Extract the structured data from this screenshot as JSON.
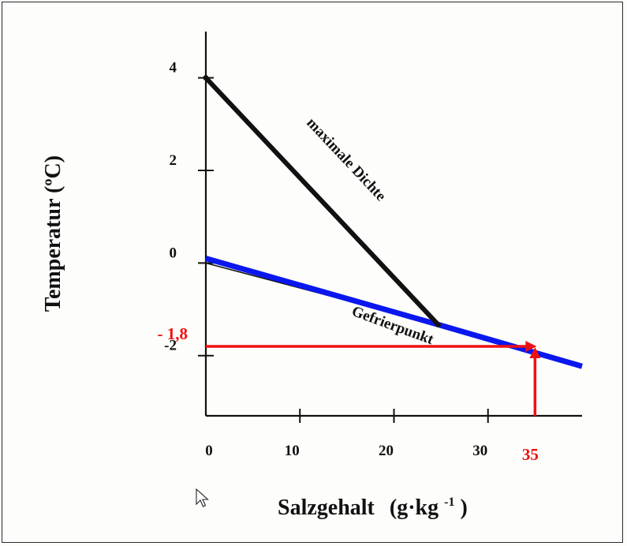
{
  "colors": {
    "max_density": "#111111",
    "freezing": "#0a17ee",
    "highlight": "#ee1111",
    "axis": "#111111"
  },
  "chart_data": {
    "type": "line",
    "xlabel": "Salzgehalt",
    "xlabel_unit_prefix": "(g·kg",
    "xlabel_unit_exp": "-1",
    "xlabel_unit_suffix": ")",
    "ylabel": "Temperatur  (ºC)",
    "xlim": [
      0,
      40
    ],
    "ylim": [
      -3.3,
      5
    ],
    "x_ticks": [
      0,
      10,
      20,
      30
    ],
    "y_ticks": [
      4,
      2,
      0,
      -2
    ],
    "x_tick_labels": [
      "0",
      "10",
      "20",
      "30"
    ],
    "y_tick_labels": [
      "4",
      "2",
      "0",
      "-2"
    ],
    "series": [
      {
        "name": "maximale Dichte",
        "x": [
          0,
          24.7
        ],
        "y": [
          4,
          -1.33
        ]
      },
      {
        "name": "Gefrierpunkt",
        "x": [
          0,
          24.7,
          40
        ],
        "y": [
          0.1,
          -1.33,
          -2.23
        ]
      }
    ],
    "guide_start_x": 0,
    "guide_start_y": 0,
    "highlight": {
      "x": 35,
      "y": -1.8,
      "x_label": "35",
      "y_label": "- 1,8"
    }
  }
}
